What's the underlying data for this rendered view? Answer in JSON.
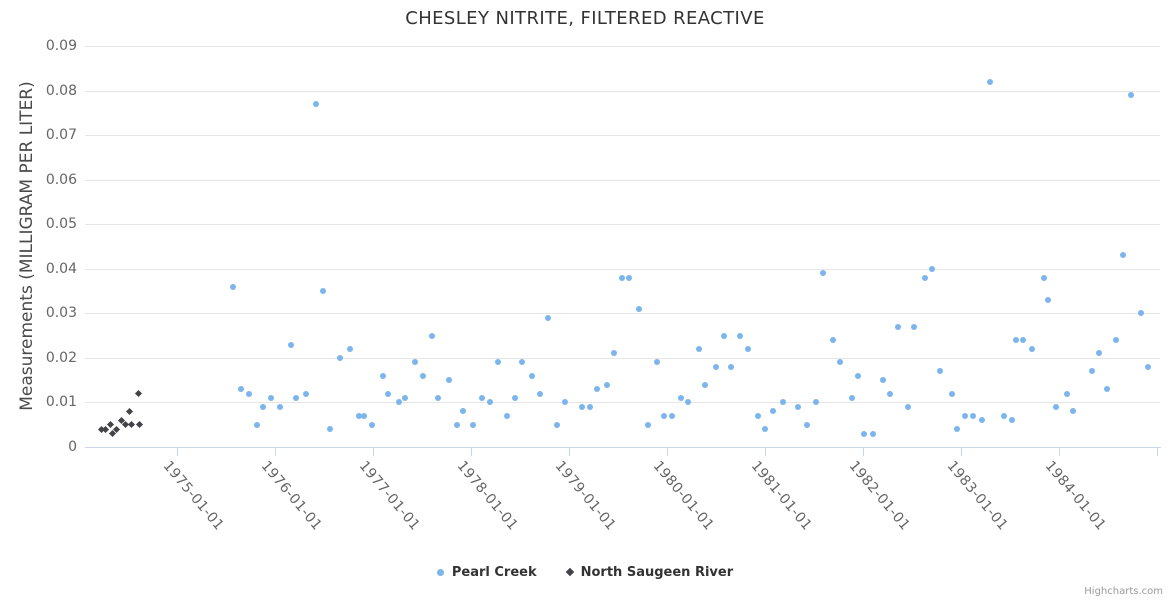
{
  "credits": "Highcharts.com",
  "chart_data": {
    "type": "scatter",
    "title": "CHESLEY NITRITE, FILTERED REACTIVE",
    "xlabel": "",
    "ylabel": "Measurements (MILLIGRAM PER LITER)",
    "xlim": [
      1974.06,
      1985.03
    ],
    "ylim": [
      0,
      0.09
    ],
    "grid": "horizontal",
    "legend_position": "bottom-center",
    "axis_color": "#ccd6eb",
    "grid_color": "#e6e6e6",
    "yticks": [
      {
        "v": 0,
        "label": "0"
      },
      {
        "v": 0.01,
        "label": "0.01"
      },
      {
        "v": 0.02,
        "label": "0.02"
      },
      {
        "v": 0.03,
        "label": "0.03"
      },
      {
        "v": 0.04,
        "label": "0.04"
      },
      {
        "v": 0.05,
        "label": "0.05"
      },
      {
        "v": 0.06,
        "label": "0.06"
      },
      {
        "v": 0.07,
        "label": "0.07"
      },
      {
        "v": 0.08,
        "label": "0.08"
      },
      {
        "v": 0.09,
        "label": "0.09"
      }
    ],
    "xticks": [
      {
        "pos": 1975,
        "label": "1975-01-01"
      },
      {
        "pos": 1976,
        "label": "1976-01-01"
      },
      {
        "pos": 1977,
        "label": "1977-01-01"
      },
      {
        "pos": 1978,
        "label": "1978-01-01"
      },
      {
        "pos": 1979,
        "label": "1979-01-01"
      },
      {
        "pos": 1980,
        "label": "1980-01-01"
      },
      {
        "pos": 1981,
        "label": "1981-01-01"
      },
      {
        "pos": 1982,
        "label": "1982-01-01"
      },
      {
        "pos": 1983,
        "label": "1983-01-01"
      },
      {
        "pos": 1984,
        "label": "1984-01-01"
      },
      {
        "pos": 1985,
        "label": ""
      }
    ],
    "series": [
      {
        "name": "Pearl Creek",
        "color": "#7cb5ec",
        "marker": "circle",
        "points": [
          [
            1975.57,
            0.036
          ],
          [
            1975.65,
            0.013
          ],
          [
            1975.73,
            0.012
          ],
          [
            1975.82,
            0.005
          ],
          [
            1975.88,
            0.009
          ],
          [
            1975.96,
            0.011
          ],
          [
            1976.05,
            0.009
          ],
          [
            1976.16,
            0.023
          ],
          [
            1976.21,
            0.011
          ],
          [
            1976.32,
            0.012
          ],
          [
            1976.42,
            0.077
          ],
          [
            1976.49,
            0.035
          ],
          [
            1976.56,
            0.004
          ],
          [
            1976.66,
            0.02
          ],
          [
            1976.76,
            0.022
          ],
          [
            1976.86,
            0.007
          ],
          [
            1976.91,
            0.007
          ],
          [
            1976.99,
            0.005
          ],
          [
            1977.1,
            0.016
          ],
          [
            1977.15,
            0.012
          ],
          [
            1977.26,
            0.01
          ],
          [
            1977.33,
            0.011
          ],
          [
            1977.43,
            0.019
          ],
          [
            1977.51,
            0.016
          ],
          [
            1977.6,
            0.025
          ],
          [
            1977.66,
            0.011
          ],
          [
            1977.77,
            0.015
          ],
          [
            1977.86,
            0.005
          ],
          [
            1977.92,
            0.008
          ],
          [
            1978.02,
            0.005
          ],
          [
            1978.11,
            0.011
          ],
          [
            1978.19,
            0.01
          ],
          [
            1978.27,
            0.019
          ],
          [
            1978.37,
            0.007
          ],
          [
            1978.45,
            0.011
          ],
          [
            1978.52,
            0.019
          ],
          [
            1978.62,
            0.016
          ],
          [
            1978.7,
            0.012
          ],
          [
            1978.78,
            0.029
          ],
          [
            1978.88,
            0.005
          ],
          [
            1978.96,
            0.01
          ],
          [
            1979.13,
            0.009
          ],
          [
            1979.21,
            0.009
          ],
          [
            1979.28,
            0.013
          ],
          [
            1979.39,
            0.014
          ],
          [
            1979.46,
            0.021
          ],
          [
            1979.54,
            0.038
          ],
          [
            1979.61,
            0.038
          ],
          [
            1979.71,
            0.031
          ],
          [
            1979.81,
            0.005
          ],
          [
            1979.9,
            0.019
          ],
          [
            1979.97,
            0.007
          ],
          [
            1980.05,
            0.007
          ],
          [
            1980.14,
            0.011
          ],
          [
            1980.21,
            0.01
          ],
          [
            1980.33,
            0.022
          ],
          [
            1980.39,
            0.014
          ],
          [
            1980.5,
            0.018
          ],
          [
            1980.58,
            0.025
          ],
          [
            1980.65,
            0.018
          ],
          [
            1980.74,
            0.025
          ],
          [
            1980.83,
            0.022
          ],
          [
            1980.93,
            0.007
          ],
          [
            1981.0,
            0.004
          ],
          [
            1981.08,
            0.008
          ],
          [
            1981.18,
            0.01
          ],
          [
            1981.34,
            0.009
          ],
          [
            1981.43,
            0.005
          ],
          [
            1981.52,
            0.01
          ],
          [
            1981.59,
            0.039
          ],
          [
            1981.69,
            0.024
          ],
          [
            1981.76,
            0.019
          ],
          [
            1981.89,
            0.011
          ],
          [
            1981.95,
            0.016
          ],
          [
            1982.01,
            0.003
          ],
          [
            1982.1,
            0.003
          ],
          [
            1982.2,
            0.015
          ],
          [
            1982.27,
            0.012
          ],
          [
            1982.36,
            0.027
          ],
          [
            1982.46,
            0.009
          ],
          [
            1982.52,
            0.027
          ],
          [
            1982.63,
            0.038
          ],
          [
            1982.7,
            0.04
          ],
          [
            1982.78,
            0.017
          ],
          [
            1982.91,
            0.012
          ],
          [
            1982.96,
            0.004
          ],
          [
            1983.04,
            0.007
          ],
          [
            1983.12,
            0.007
          ],
          [
            1983.21,
            0.006
          ],
          [
            1983.3,
            0.082
          ],
          [
            1983.44,
            0.007
          ],
          [
            1983.52,
            0.006
          ],
          [
            1983.56,
            0.024
          ],
          [
            1983.63,
            0.024
          ],
          [
            1983.72,
            0.022
          ],
          [
            1983.85,
            0.038
          ],
          [
            1983.89,
            0.033
          ],
          [
            1983.97,
            0.009
          ],
          [
            1984.08,
            0.012
          ],
          [
            1984.14,
            0.008
          ],
          [
            1984.34,
            0.017
          ],
          [
            1984.41,
            0.021
          ],
          [
            1984.49,
            0.013
          ],
          [
            1984.58,
            0.024
          ],
          [
            1984.65,
            0.043
          ],
          [
            1984.73,
            0.079
          ],
          [
            1984.84,
            0.03
          ],
          [
            1984.91,
            0.018
          ]
        ]
      },
      {
        "name": "North Saugeen River",
        "color": "#434348",
        "marker": "diamond",
        "points": [
          [
            1974.23,
            0.004
          ],
          [
            1974.27,
            0.004
          ],
          [
            1974.32,
            0.005
          ],
          [
            1974.34,
            0.003
          ],
          [
            1974.38,
            0.004
          ],
          [
            1974.43,
            0.006
          ],
          [
            1974.47,
            0.005
          ],
          [
            1974.51,
            0.008
          ],
          [
            1974.53,
            0.005
          ],
          [
            1974.61,
            0.012
          ],
          [
            1974.62,
            0.005
          ]
        ]
      }
    ]
  }
}
